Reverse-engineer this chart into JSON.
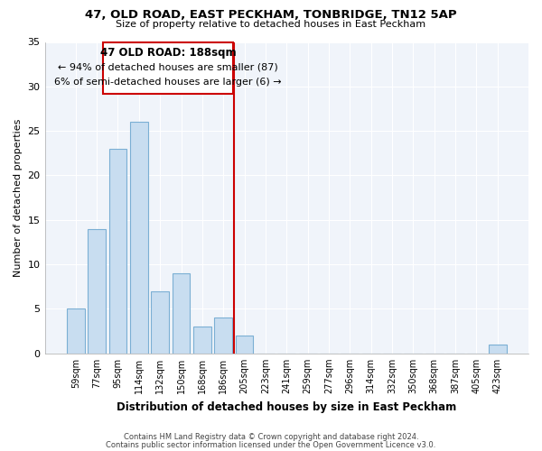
{
  "title": "47, OLD ROAD, EAST PECKHAM, TONBRIDGE, TN12 5AP",
  "subtitle": "Size of property relative to detached houses in East Peckham",
  "xlabel": "Distribution of detached houses by size in East Peckham",
  "ylabel": "Number of detached properties",
  "bar_color": "#c8ddf0",
  "bar_edge_color": "#7bafd4",
  "bin_labels": [
    "59sqm",
    "77sqm",
    "95sqm",
    "114sqm",
    "132sqm",
    "150sqm",
    "168sqm",
    "186sqm",
    "205sqm",
    "223sqm",
    "241sqm",
    "259sqm",
    "277sqm",
    "296sqm",
    "314sqm",
    "332sqm",
    "350sqm",
    "368sqm",
    "387sqm",
    "405sqm",
    "423sqm"
  ],
  "bar_heights": [
    5,
    14,
    23,
    26,
    7,
    9,
    3,
    4,
    2,
    0,
    0,
    0,
    0,
    0,
    0,
    0,
    0,
    0,
    0,
    0,
    1
  ],
  "vline_color": "#cc0000",
  "ylim": [
    0,
    35
  ],
  "yticks": [
    0,
    5,
    10,
    15,
    20,
    25,
    30,
    35
  ],
  "annotation_title": "47 OLD ROAD: 188sqm",
  "annotation_line1": "← 94% of detached houses are smaller (87)",
  "annotation_line2": "6% of semi-detached houses are larger (6) →",
  "annotation_box_color": "#ffffff",
  "annotation_box_edge": "#cc0000",
  "footer1": "Contains HM Land Registry data © Crown copyright and database right 2024.",
  "footer2": "Contains public sector information licensed under the Open Government Licence v3.0.",
  "background_color": "#ffffff",
  "plot_bg_color": "#f0f4fa",
  "grid_color": "#ffffff"
}
